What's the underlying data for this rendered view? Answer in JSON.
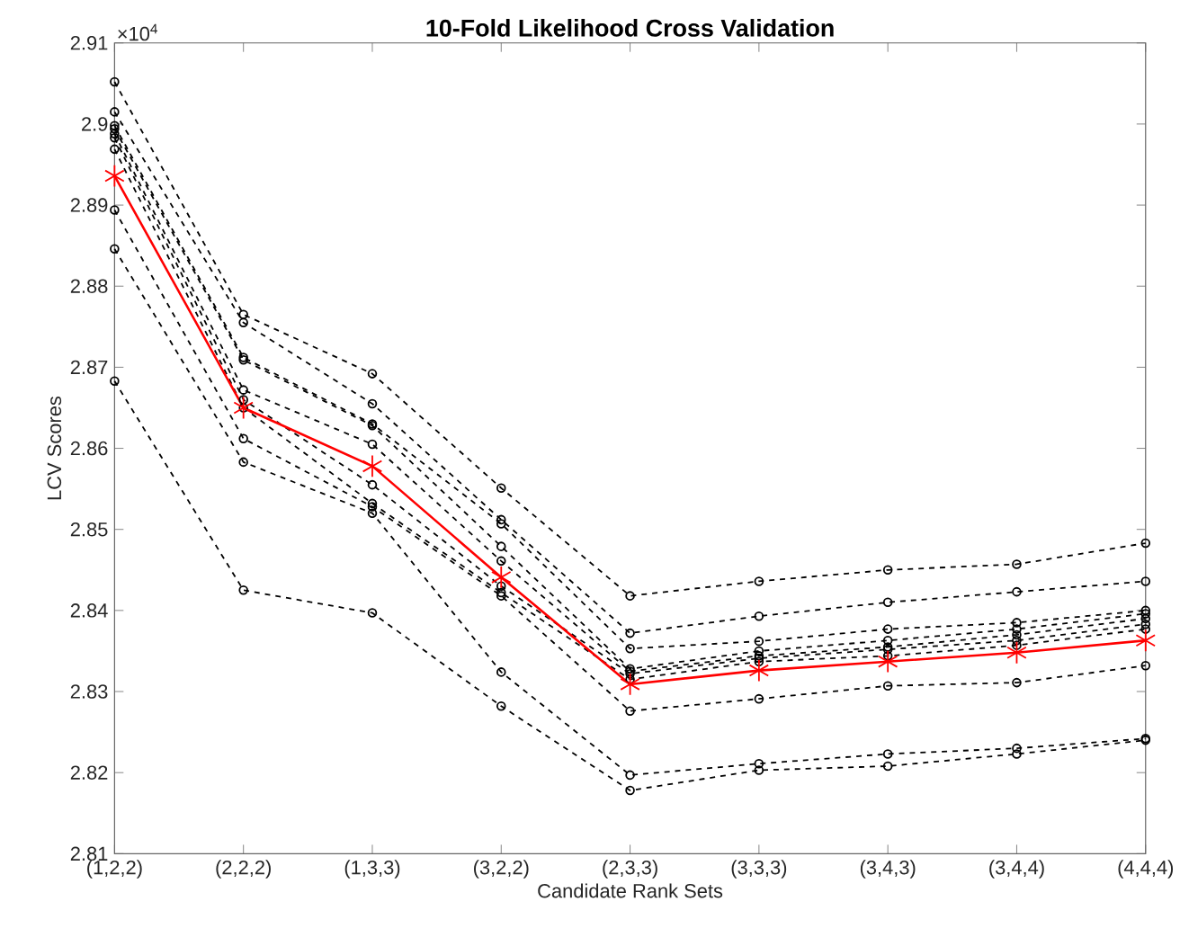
{
  "chart_data": {
    "type": "line",
    "title": "10-Fold Likelihood Cross Validation",
    "xlabel": "Candidate Rank Sets",
    "ylabel": "LCV Scores",
    "annotations": [
      "×10$^{4}$"
    ],
    "categories": [
      "(1,2,2)",
      "(2,2,2)",
      "(1,3,3)",
      "(3,2,2)",
      "(2,3,3)",
      "(3,3,3)",
      "(3,4,3)",
      "(3,4,4)",
      "(4,4,4)"
    ],
    "ylim": [
      2.81,
      2.91
    ],
    "yticks": [
      2.81,
      2.82,
      2.83,
      2.84,
      2.85,
      2.86,
      2.87,
      2.88,
      2.89,
      2.9,
      2.91
    ],
    "grid": false,
    "series": [
      {
        "color": "#000000",
        "marker": "circle",
        "line_style": "dashed",
        "values": [
          2.9052,
          2.8765,
          2.8692,
          2.8551,
          2.8418,
          2.8436,
          2.845,
          2.8457,
          2.8483
        ]
      },
      {
        "color": "#000000",
        "marker": "circle",
        "line_style": "dashed",
        "values": [
          2.9015,
          2.8755,
          2.8655,
          2.8512,
          2.8372,
          2.8393,
          2.841,
          2.8423,
          2.8436
        ]
      },
      {
        "color": "#000000",
        "marker": "circle",
        "line_style": "dashed",
        "values": [
          2.8998,
          2.8712,
          2.863,
          2.8507,
          2.8353,
          2.8362,
          2.8377,
          2.8385,
          2.84
        ]
      },
      {
        "color": "#000000",
        "marker": "circle",
        "line_style": "dashed",
        "values": [
          2.8994,
          2.8709,
          2.8628,
          2.8479,
          2.8328,
          2.835,
          2.8363,
          2.8377,
          2.8396
        ]
      },
      {
        "color": "#000000",
        "marker": "circle",
        "line_style": "dashed",
        "values": [
          2.8988,
          2.8672,
          2.8605,
          2.8461,
          2.8325,
          2.8344,
          2.8355,
          2.837,
          2.839
        ]
      },
      {
        "color": "#000000",
        "marker": "circle",
        "line_style": "dashed",
        "values": [
          2.8983,
          2.866,
          2.8555,
          2.843,
          2.8322,
          2.8341,
          2.8352,
          2.8363,
          2.8383
        ]
      },
      {
        "color": "#000000",
        "marker": "circle",
        "line_style": "dashed",
        "values": [
          2.8969,
          2.865,
          2.8532,
          2.8422,
          2.8315,
          2.8337,
          2.8344,
          2.8357,
          2.8377
        ]
      },
      {
        "color": "#000000",
        "marker": "circle",
        "line_style": "dashed",
        "values": [
          2.8894,
          2.8612,
          2.8528,
          2.8418,
          2.8276,
          2.8291,
          2.8307,
          2.8311,
          2.8332
        ]
      },
      {
        "color": "#000000",
        "marker": "circle",
        "line_style": "dashed",
        "values": [
          2.8846,
          2.8583,
          2.852,
          2.8324,
          2.8197,
          2.8211,
          2.8223,
          2.823,
          2.8242
        ]
      },
      {
        "color": "#000000",
        "marker": "circle",
        "line_style": "dashed",
        "values": [
          2.8683,
          2.8425,
          2.8397,
          2.8282,
          2.8178,
          2.8203,
          2.8208,
          2.8223,
          2.824
        ]
      },
      {
        "color": "#ff0000",
        "marker": "cross",
        "line_style": "solid",
        "values": [
          2.8936,
          2.865,
          2.8578,
          2.8441,
          2.8309,
          2.8326,
          2.8337,
          2.8348,
          2.8363
        ]
      }
    ]
  }
}
